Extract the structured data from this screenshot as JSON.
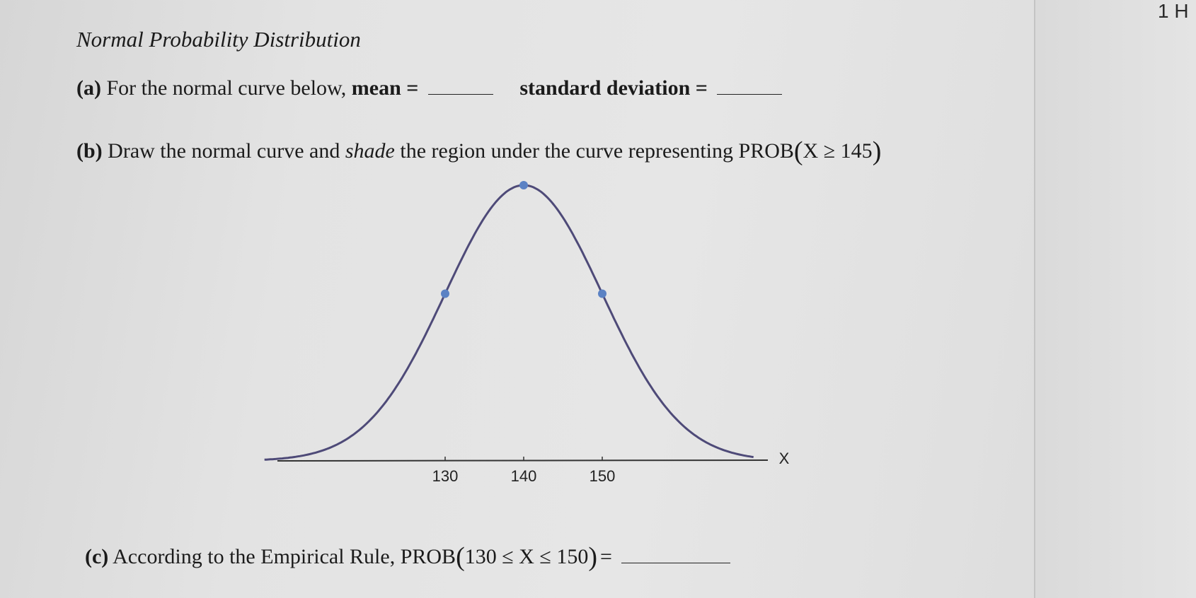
{
  "page": {
    "corner_label": "1 H",
    "title": "Normal Probability Distribution"
  },
  "part_a": {
    "label": "(a)",
    "text": " For the normal curve below, ",
    "mean_label": "mean =",
    "sd_label": "standard deviation ="
  },
  "part_b": {
    "label": "(b)",
    "text1": " Draw the normal curve and ",
    "shade_word": "shade",
    "text2": " the region under the curve representing PROB",
    "expr": "X ≥ 145"
  },
  "part_c": {
    "label": "(c)",
    "text": " According to the Empirical Rule, PROB",
    "expr": "130 ≤ X ≤ 150",
    "equals": "="
  },
  "chart_data": {
    "type": "line",
    "xlabel": "X",
    "ticks": [
      "130",
      "140",
      "150"
    ],
    "mean": 140,
    "sd": 10,
    "marked_points": [
      {
        "x": 130,
        "label": "inflection"
      },
      {
        "x": 140,
        "label": "peak"
      },
      {
        "x": 150,
        "label": "inflection"
      }
    ],
    "colors": {
      "curve": "#4e4a78",
      "points": "#5b82c4",
      "axis": "#333333"
    }
  }
}
